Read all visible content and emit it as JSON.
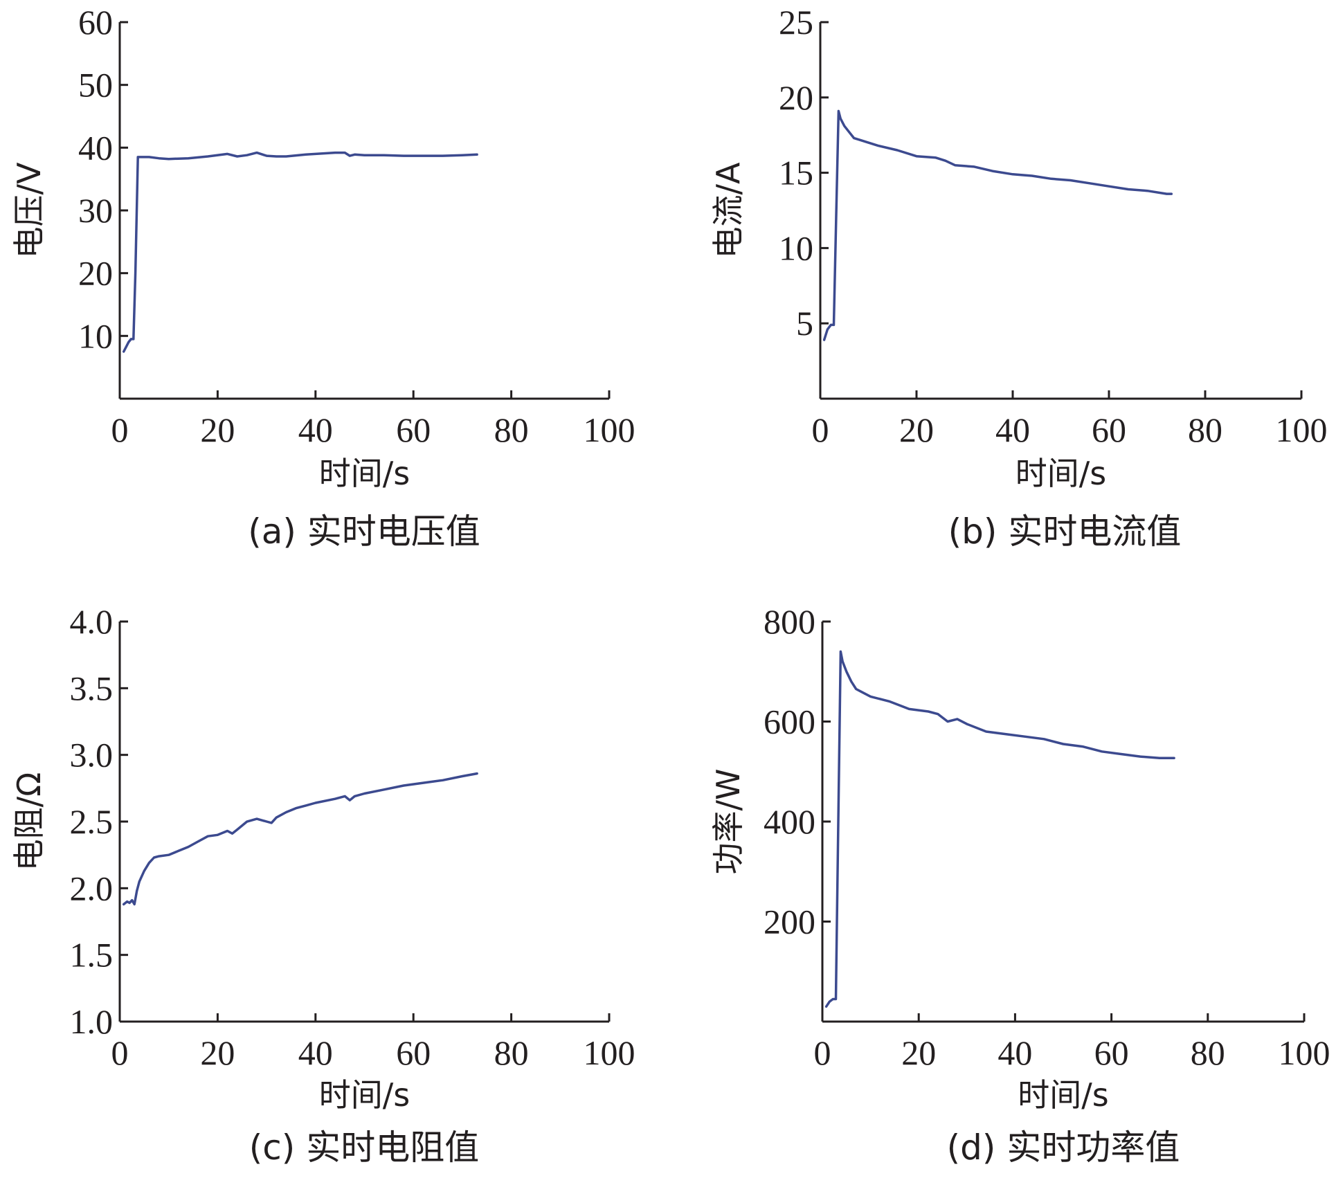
{
  "chart_data": [
    {
      "type": "line",
      "ylabel": "电压/V",
      "xlabel": "时间/s",
      "caption": "(a) 实时电压值",
      "xlim": [
        0,
        100
      ],
      "ylim": [
        0,
        60
      ],
      "xticks": [
        "0",
        "20",
        "40",
        "60",
        "80",
        "100"
      ],
      "yticks": [
        "10",
        "20",
        "30",
        "40",
        "50",
        "60"
      ],
      "color": "#3c4a8f",
      "x": [
        0.8,
        1.8,
        2.3,
        2.8,
        3.2,
        3.7,
        4.3,
        6,
        8,
        10,
        14,
        18,
        22,
        24,
        26,
        28,
        30,
        32,
        34,
        38,
        42,
        44,
        46,
        47,
        48,
        50,
        54,
        58,
        62,
        66,
        70,
        73
      ],
      "y": [
        7.5,
        9,
        9.5,
        9.5,
        20,
        38.5,
        38.5,
        38.5,
        38.3,
        38.2,
        38.3,
        38.6,
        39,
        38.6,
        38.8,
        39.2,
        38.7,
        38.6,
        38.6,
        38.9,
        39.1,
        39.2,
        39.2,
        38.7,
        38.9,
        38.8,
        38.8,
        38.7,
        38.7,
        38.7,
        38.8,
        38.9
      ]
    },
    {
      "type": "line",
      "ylabel": "电流/A",
      "xlabel": "时间/s",
      "caption": "(b) 实时电流值",
      "xlim": [
        0,
        100
      ],
      "ylim": [
        0,
        25
      ],
      "xticks": [
        "0",
        "20",
        "40",
        "60",
        "80",
        "100"
      ],
      "yticks": [
        "5",
        "10",
        "15",
        "20",
        "25"
      ],
      "color": "#3c4a8f",
      "x": [
        0.8,
        1.5,
        2.2,
        2.8,
        3.3,
        3.8,
        4.2,
        5,
        6,
        7,
        8,
        10,
        12,
        16,
        20,
        24,
        26,
        28,
        32,
        36,
        40,
        44,
        48,
        52,
        56,
        60,
        64,
        68,
        72,
        73
      ],
      "y": [
        3.9,
        4.6,
        4.9,
        4.9,
        12,
        19.1,
        18.6,
        18.1,
        17.7,
        17.3,
        17.2,
        17,
        16.8,
        16.5,
        16.1,
        16,
        15.8,
        15.5,
        15.4,
        15.1,
        14.9,
        14.8,
        14.6,
        14.5,
        14.3,
        14.1,
        13.9,
        13.8,
        13.6,
        13.6
      ]
    },
    {
      "type": "line",
      "ylabel": "电阻/Ω",
      "xlabel": "时间/s",
      "caption": "(c) 实时电阻值",
      "xlim": [
        0,
        100
      ],
      "ylim": [
        1.0,
        4.0
      ],
      "xticks": [
        "0",
        "20",
        "40",
        "60",
        "80",
        "100"
      ],
      "yticks": [
        "1.0",
        "1.5",
        "2.0",
        "2.5",
        "3.0",
        "3.5",
        "4.0"
      ],
      "color": "#3c4a8f",
      "x": [
        0.8,
        1.5,
        2,
        2.5,
        3,
        3.5,
        4,
        5,
        6,
        7,
        8,
        10,
        12,
        14,
        16,
        18,
        20,
        22,
        23,
        24,
        26,
        28,
        30,
        31,
        32,
        34,
        36,
        38,
        40,
        44,
        46,
        47,
        48,
        50,
        54,
        58,
        62,
        66,
        70,
        73
      ],
      "y": [
        1.88,
        1.9,
        1.89,
        1.91,
        1.88,
        1.98,
        2.05,
        2.13,
        2.19,
        2.23,
        2.24,
        2.25,
        2.28,
        2.31,
        2.35,
        2.39,
        2.4,
        2.43,
        2.41,
        2.44,
        2.5,
        2.52,
        2.5,
        2.49,
        2.53,
        2.57,
        2.6,
        2.62,
        2.64,
        2.67,
        2.69,
        2.66,
        2.69,
        2.71,
        2.74,
        2.77,
        2.79,
        2.81,
        2.84,
        2.86
      ]
    },
    {
      "type": "line",
      "ylabel": "功率/W",
      "xlabel": "时间/s",
      "caption": "(d) 实时功率值",
      "xlim": [
        0,
        100
      ],
      "ylim": [
        0,
        800
      ],
      "xticks": [
        "0",
        "20",
        "40",
        "60",
        "80",
        "100"
      ],
      "yticks": [
        "200",
        "400",
        "600",
        "800"
      ],
      "color": "#3c4a8f",
      "x": [
        0.8,
        1.5,
        2.2,
        2.8,
        3.3,
        3.8,
        4.2,
        5,
        6,
        7,
        8,
        10,
        14,
        18,
        22,
        24,
        26,
        28,
        30,
        34,
        38,
        42,
        46,
        50,
        54,
        58,
        62,
        66,
        70,
        73
      ],
      "y": [
        30,
        40,
        45,
        45,
        400,
        740,
        720,
        700,
        680,
        665,
        660,
        650,
        640,
        625,
        620,
        615,
        600,
        605,
        595,
        580,
        575,
        570,
        565,
        555,
        550,
        540,
        535,
        530,
        527,
        527
      ]
    }
  ]
}
